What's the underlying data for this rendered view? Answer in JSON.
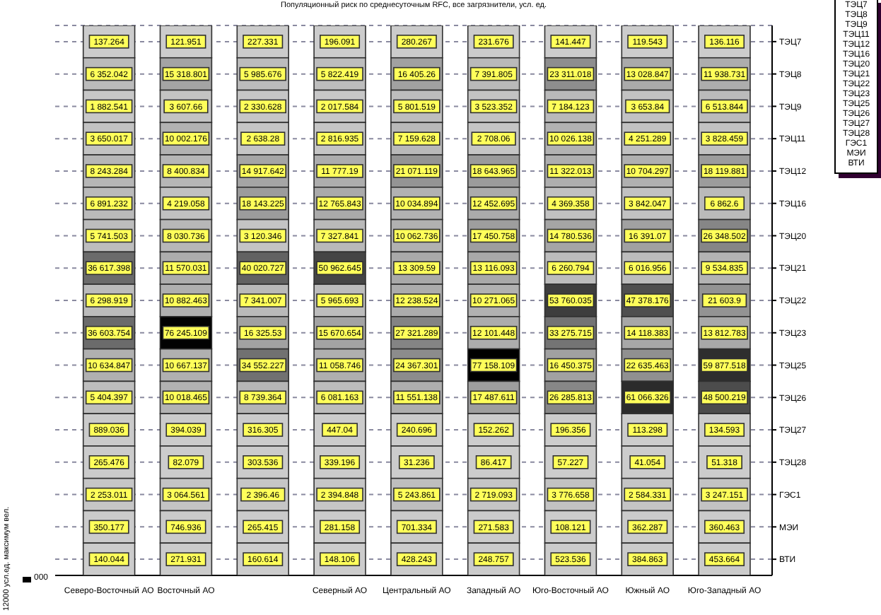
{
  "chart_data": {
    "type": "heatmap",
    "title": "Популяционный риск по среднесуточным RFC, все загрязнители, усл. ед.",
    "categories": [
      "Северо-Восточный АО",
      "Восточный АО",
      null,
      "Северный АО",
      "Центральный АО",
      "Западный АО",
      "Юго-Восточный АО",
      "Южный АО",
      "Юго-Западный АО"
    ],
    "y_categories": [
      "ТЭЦ7",
      "ТЭЦ8",
      "ТЭЦ9",
      "ТЭЦ11",
      "ТЭЦ12",
      "ТЭЦ16",
      "ТЭЦ20",
      "ТЭЦ21",
      "ТЭЦ22",
      "ТЭЦ23",
      "ТЭЦ25",
      "ТЭЦ26",
      "ТЭЦ27",
      "ТЭЦ28",
      "ГЭС1",
      "МЭИ",
      "ВТИ"
    ],
    "cells": [
      [
        137.264,
        121.951,
        227.331,
        196.091,
        280.267,
        231.676,
        141.447,
        119.543,
        136.116
      ],
      [
        6352.042,
        15318.801,
        5985.676,
        5822.419,
        16405.26,
        7391.805,
        23311.018,
        13028.847,
        11938.731
      ],
      [
        1882.541,
        3607.66,
        2330.628,
        2017.584,
        5801.519,
        3523.352,
        7184.123,
        3653.84,
        6513.844
      ],
      [
        3650.017,
        10002.176,
        2638.28,
        2816.935,
        7159.628,
        2708.06,
        10026.138,
        4251.289,
        3828.459
      ],
      [
        8243.284,
        8400.834,
        14917.642,
        11777.19,
        21071.119,
        18643.965,
        11322.013,
        10704.297,
        18119.881
      ],
      [
        6891.232,
        4219.058,
        18143.225,
        12765.843,
        10034.894,
        12452.695,
        4369.358,
        3842.047,
        6862.6
      ],
      [
        5741.503,
        8030.736,
        3120.346,
        7327.841,
        10062.736,
        17450.758,
        14780.536,
        16391.07,
        26348.502
      ],
      [
        36617.398,
        11570.031,
        40020.727,
        50962.645,
        13309.59,
        13116.093,
        6260.794,
        6016.956,
        9534.835
      ],
      [
        6298.919,
        10882.463,
        7341.007,
        5965.693,
        12238.524,
        10271.065,
        53760.035,
        47378.176,
        21603.9
      ],
      [
        36603.754,
        76245.109,
        16325.53,
        15670.654,
        27321.289,
        12101.448,
        33275.715,
        14118.383,
        13812.783
      ],
      [
        10634.847,
        10667.137,
        34552.227,
        11058.746,
        24367.301,
        77158.109,
        16450.375,
        22635.463,
        59877.518
      ],
      [
        5404.397,
        10018.465,
        8739.364,
        6081.163,
        11551.138,
        17487.611,
        26285.813,
        61066.326,
        48500.219
      ],
      [
        889.036,
        394.039,
        316.305,
        447.04,
        240.696,
        152.262,
        196.356,
        113.298,
        134.593
      ],
      [
        265.476,
        82.079,
        303.536,
        339.196,
        31.236,
        86.417,
        57.227,
        41.054,
        51.318
      ],
      [
        2253.011,
        3064.561,
        2396.46,
        2394.848,
        5243.861,
        2719.093,
        3776.658,
        2584.331,
        3247.151
      ],
      [
        350.177,
        746.936,
        265.415,
        281.158,
        701.334,
        271.583,
        108.121,
        362.287,
        360.463
      ],
      [
        140.044,
        271.931,
        160.614,
        148.106,
        428.243,
        248.757,
        523.536,
        384.863,
        453.664
      ]
    ],
    "cell_labels": [
      [
        "137.264",
        "121.951",
        "227.331",
        "196.091",
        "280.267",
        "231.676",
        "141.447",
        "119.543",
        "136.116"
      ],
      [
        "6 352.042",
        "15 318.801",
        "5 985.676",
        "5 822.419",
        "16 405.26",
        "7 391.805",
        "23 311.018",
        "13 028.847",
        "11 938.731"
      ],
      [
        "1 882.541",
        "3 607.66",
        "2 330.628",
        "2 017.584",
        "5 801.519",
        "3 523.352",
        "7 184.123",
        "3 653.84",
        "6 513.844"
      ],
      [
        "3 650.017",
        "10 002.176",
        "2 638.28",
        "2 816.935",
        "7 159.628",
        "2 708.06",
        "10 026.138",
        "4 251.289",
        "3 828.459"
      ],
      [
        "8 243.284",
        "8 400.834",
        "14 917.642",
        "11 777.19",
        "21 071.119",
        "18 643.965",
        "11 322.013",
        "10 704.297",
        "18 119.881"
      ],
      [
        "6 891.232",
        "4 219.058",
        "18 143.225",
        "12 765.843",
        "10 034.894",
        "12 452.695",
        "4 369.358",
        "3 842.047",
        "6 862.6"
      ],
      [
        "5 741.503",
        "8 030.736",
        "3 120.346",
        "7 327.841",
        "10 062.736",
        "17 450.758",
        "14 780.536",
        "16 391.07",
        "26 348.502"
      ],
      [
        "36 617.398",
        "11 570.031",
        "40 020.727",
        "50 962.645",
        "13 309.59",
        "13 116.093",
        "6 260.794",
        "6 016.956",
        "9 534.835"
      ],
      [
        "6 298.919",
        "10 882.463",
        "7 341.007",
        "5 965.693",
        "12 238.524",
        "10 271.065",
        "53 760.035",
        "47 378.176",
        "21 603.9"
      ],
      [
        "36 603.754",
        "76 245.109",
        "16 325.53",
        "15 670.654",
        "27 321.289",
        "12 101.448",
        "33 275.715",
        "14 118.383",
        "13 812.783"
      ],
      [
        "10 634.847",
        "10 667.137",
        "34 552.227",
        "11 058.746",
        "24 367.301",
        "77 158.109",
        "16 450.375",
        "22 635.463",
        "59 877.518"
      ],
      [
        "5 404.397",
        "10 018.465",
        "8 739.364",
        "6 081.163",
        "11 551.138",
        "17 487.611",
        "26 285.813",
        "61 066.326",
        "48 500.219"
      ],
      [
        "889.036",
        "394.039",
        "316.305",
        "447.04",
        "240.696",
        "152.262",
        "196.356",
        "113.298",
        "134.593"
      ],
      [
        "265.476",
        "82.079",
        "303.536",
        "339.196",
        "31.236",
        "86.417",
        "57.227",
        "41.054",
        "51.318"
      ],
      [
        "2 253.011",
        "3 064.561",
        "2 396.46",
        "2 394.848",
        "5 243.861",
        "2 719.093",
        "3 776.658",
        "2 584.331",
        "3 247.151"
      ],
      [
        "350.177",
        "746.936",
        "265.415",
        "281.158",
        "701.334",
        "271.583",
        "108.121",
        "362.287",
        "360.463"
      ],
      [
        "140.044",
        "271.931",
        "160.614",
        "148.106",
        "428.243",
        "248.757",
        "523.536",
        "384.863",
        "453.664"
      ]
    ],
    "annotations": [
      "000",
      "12000 усл.ед. максимум вел."
    ],
    "grid": "y"
  }
}
